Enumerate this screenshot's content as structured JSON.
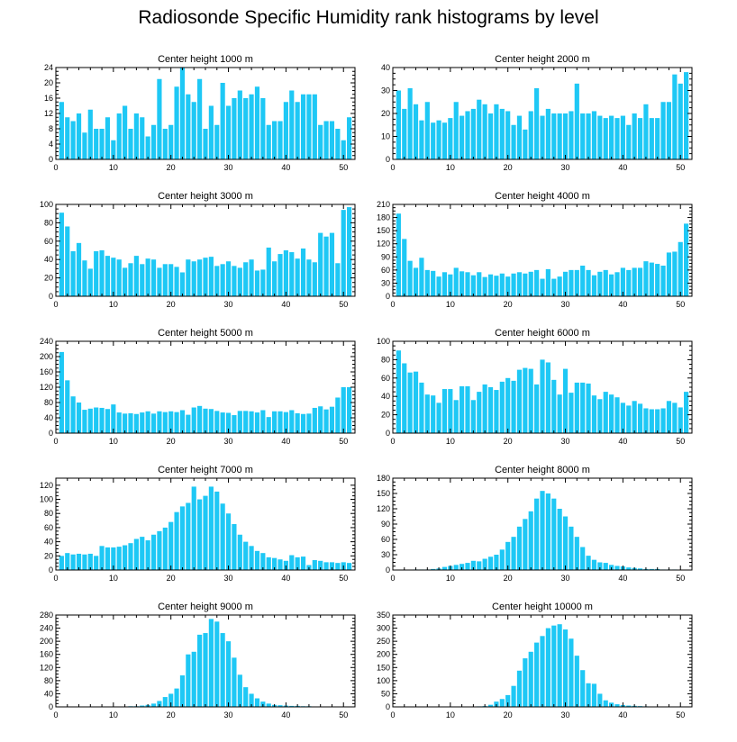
{
  "title": "Radiosonde Specific Humidity rank histograms by level",
  "colors": {
    "bar": "#1ec8f5",
    "axis": "#000000",
    "background": "#ffffff"
  },
  "chart_data": [
    {
      "type": "bar",
      "title": "Center height 1000 m",
      "xlim": [
        0,
        52
      ],
      "ylim": [
        0,
        24
      ],
      "xticks": [
        0,
        10,
        20,
        30,
        40,
        50
      ],
      "yticks": [
        0,
        4,
        8,
        12,
        16,
        20,
        24
      ],
      "values": [
        15,
        11,
        10,
        12,
        7,
        13,
        8,
        8,
        11,
        5,
        12,
        14,
        8,
        12,
        11,
        6,
        9,
        21,
        8,
        9,
        19,
        24,
        17,
        15,
        21,
        8,
        14,
        9,
        20,
        14,
        16,
        18,
        16,
        17,
        19,
        16,
        9,
        10,
        10,
        15,
        18,
        15,
        17,
        17,
        17,
        9,
        10,
        10,
        8,
        5,
        11
      ]
    },
    {
      "type": "bar",
      "title": "Center height 2000 m",
      "xlim": [
        0,
        52
      ],
      "ylim": [
        0,
        40
      ],
      "xticks": [
        0,
        10,
        20,
        30,
        40,
        50
      ],
      "yticks": [
        0,
        10,
        20,
        30,
        40
      ],
      "values": [
        30,
        22,
        31,
        24,
        17,
        25,
        16,
        17,
        16,
        18,
        25,
        19,
        21,
        22,
        26,
        24,
        20,
        24,
        22,
        21,
        15,
        19,
        13,
        21,
        31,
        19,
        22,
        20,
        20,
        20,
        21,
        33,
        20,
        20,
        21,
        19,
        18,
        19,
        18,
        19,
        15,
        20,
        18,
        24,
        18,
        18,
        25,
        25,
        37,
        33,
        38
      ]
    },
    {
      "type": "bar",
      "title": "Center height 3000 m",
      "xlim": [
        0,
        52
      ],
      "ylim": [
        0,
        100
      ],
      "xticks": [
        0,
        10,
        20,
        30,
        40,
        50
      ],
      "yticks": [
        0,
        20,
        40,
        60,
        80,
        100
      ],
      "values": [
        91,
        76,
        49,
        58,
        39,
        30,
        49,
        50,
        44,
        42,
        40,
        31,
        36,
        44,
        35,
        41,
        40,
        31,
        35,
        35,
        32,
        26,
        40,
        38,
        40,
        42,
        43,
        33,
        35,
        38,
        33,
        31,
        37,
        40,
        28,
        29,
        53,
        38,
        46,
        50,
        48,
        41,
        52,
        40,
        37,
        69,
        65,
        69,
        36,
        94,
        97
      ]
    },
    {
      "type": "bar",
      "title": "Center height 4000 m",
      "xlim": [
        0,
        52
      ],
      "ylim": [
        0,
        210
      ],
      "xticks": [
        0,
        10,
        20,
        30,
        40,
        50
      ],
      "yticks": [
        0,
        30,
        60,
        90,
        120,
        150,
        180,
        210
      ],
      "values": [
        189,
        131,
        81,
        65,
        88,
        60,
        58,
        45,
        55,
        50,
        65,
        57,
        55,
        48,
        55,
        44,
        50,
        47,
        52,
        45,
        52,
        55,
        52,
        56,
        60,
        40,
        62,
        40,
        45,
        56,
        60,
        60,
        70,
        60,
        48,
        56,
        60,
        50,
        55,
        65,
        60,
        65,
        65,
        80,
        77,
        74,
        70,
        100,
        102,
        124,
        166
      ]
    },
    {
      "type": "bar",
      "title": "Center height 5000 m",
      "xlim": [
        0,
        52
      ],
      "ylim": [
        0,
        240
      ],
      "xticks": [
        0,
        10,
        20,
        30,
        40,
        50
      ],
      "yticks": [
        0,
        40,
        80,
        120,
        160,
        200,
        240
      ],
      "values": [
        212,
        138,
        96,
        80,
        61,
        64,
        67,
        66,
        63,
        75,
        54,
        51,
        52,
        50,
        54,
        57,
        51,
        57,
        55,
        57,
        55,
        60,
        48,
        67,
        71,
        64,
        63,
        58,
        54,
        53,
        47,
        58,
        58,
        57,
        54,
        60,
        42,
        57,
        57,
        55,
        60,
        52,
        50,
        51,
        66,
        70,
        62,
        69,
        93,
        120,
        120
      ]
    },
    {
      "type": "bar",
      "title": "Center height 6000 m",
      "xlim": [
        0,
        52
      ],
      "ylim": [
        0,
        100
      ],
      "xticks": [
        0,
        10,
        20,
        30,
        40,
        50
      ],
      "yticks": [
        0,
        20,
        40,
        60,
        80,
        100
      ],
      "values": [
        90,
        76,
        66,
        67,
        55,
        42,
        41,
        33,
        48,
        48,
        36,
        51,
        51,
        36,
        45,
        53,
        50,
        47,
        56,
        60,
        57,
        69,
        71,
        70,
        53,
        80,
        77,
        58,
        42,
        70,
        44,
        55,
        55,
        54,
        41,
        37,
        45,
        42,
        39,
        33,
        30,
        35,
        32,
        27,
        26,
        26,
        27,
        35,
        33,
        28,
        45
      ]
    },
    {
      "type": "bar",
      "title": "Center height 7000 m",
      "xlim": [
        0,
        52
      ],
      "ylim": [
        0,
        130
      ],
      "xticks": [
        0,
        10,
        20,
        30,
        40,
        50
      ],
      "yticks": [
        0,
        20,
        40,
        60,
        80,
        100,
        120
      ],
      "values": [
        20,
        24,
        22,
        23,
        22,
        23,
        20,
        34,
        32,
        32,
        33,
        35,
        38,
        44,
        47,
        42,
        50,
        55,
        60,
        68,
        82,
        90,
        95,
        118,
        100,
        105,
        118,
        111,
        94,
        80,
        65,
        50,
        40,
        34,
        27,
        24,
        18,
        17,
        15,
        13,
        21,
        18,
        19,
        7,
        14,
        13,
        11,
        11,
        10,
        11,
        10
      ]
    },
    {
      "type": "bar",
      "title": "Center height 8000 m",
      "xlim": [
        0,
        52
      ],
      "ylim": [
        0,
        180
      ],
      "xticks": [
        0,
        10,
        20,
        30,
        40,
        50
      ],
      "yticks": [
        0,
        30,
        60,
        90,
        120,
        150,
        180
      ],
      "values": [
        0,
        0,
        0,
        1,
        1,
        1,
        2,
        3,
        6,
        8,
        10,
        12,
        14,
        18,
        17,
        22,
        26,
        30,
        40,
        55,
        65,
        85,
        100,
        115,
        140,
        155,
        150,
        140,
        120,
        105,
        85,
        65,
        45,
        28,
        20,
        15,
        14,
        10,
        8,
        7,
        5,
        4,
        3,
        2,
        2,
        2,
        1,
        1,
        1,
        0,
        0
      ]
    },
    {
      "type": "bar",
      "title": "Center height 9000 m",
      "xlim": [
        0,
        52
      ],
      "ylim": [
        0,
        280
      ],
      "xticks": [
        0,
        10,
        20,
        30,
        40,
        50
      ],
      "yticks": [
        0,
        40,
        80,
        120,
        160,
        200,
        240,
        280
      ],
      "values": [
        0,
        0,
        0,
        0,
        0,
        0,
        0,
        0,
        0,
        1,
        1,
        1,
        2,
        2,
        4,
        6,
        10,
        18,
        30,
        40,
        56,
        96,
        160,
        168,
        220,
        225,
        268,
        260,
        225,
        200,
        150,
        98,
        60,
        40,
        26,
        16,
        10,
        6,
        5,
        4,
        3,
        3,
        2,
        2,
        1,
        1,
        0,
        0,
        0,
        0,
        0
      ]
    },
    {
      "type": "bar",
      "title": "Center height 10000 m",
      "xlim": [
        0,
        52
      ],
      "ylim": [
        0,
        350
      ],
      "xticks": [
        0,
        10,
        20,
        30,
        40,
        50
      ],
      "yticks": [
        0,
        50,
        100,
        150,
        200,
        250,
        300,
        350
      ],
      "values": [
        0,
        0,
        0,
        0,
        0,
        0,
        0,
        0,
        0,
        0,
        0,
        0,
        0,
        1,
        2,
        3,
        8,
        20,
        30,
        45,
        80,
        138,
        185,
        210,
        245,
        270,
        300,
        310,
        315,
        295,
        260,
        195,
        140,
        90,
        88,
        50,
        25,
        16,
        10,
        7,
        5,
        4,
        3,
        2,
        1,
        1,
        0,
        0,
        0,
        0,
        0
      ]
    }
  ]
}
